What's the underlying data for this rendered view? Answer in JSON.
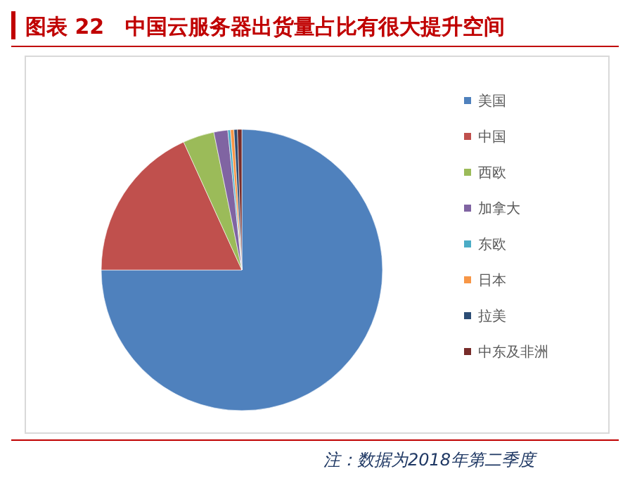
{
  "chart_data": {
    "type": "pie",
    "title": "图表 22　中国云服务器出货量占比有很大提升空间",
    "categories": [
      "美国",
      "中国",
      "西欧",
      "加拿大",
      "东欧",
      "日本",
      "拉美",
      "中东及非洲"
    ],
    "values": [
      75,
      18.2,
      3.6,
      1.6,
      0.3,
      0.4,
      0.4,
      0.5
    ],
    "colors": [
      "#4f81bd",
      "#c0504d",
      "#9bbb59",
      "#8064a2",
      "#4bacc6",
      "#f79646",
      "#2c4d75",
      "#772c2a"
    ],
    "legend": "right",
    "annotations": [
      "注：数据为2018年第二季度"
    ]
  }
}
